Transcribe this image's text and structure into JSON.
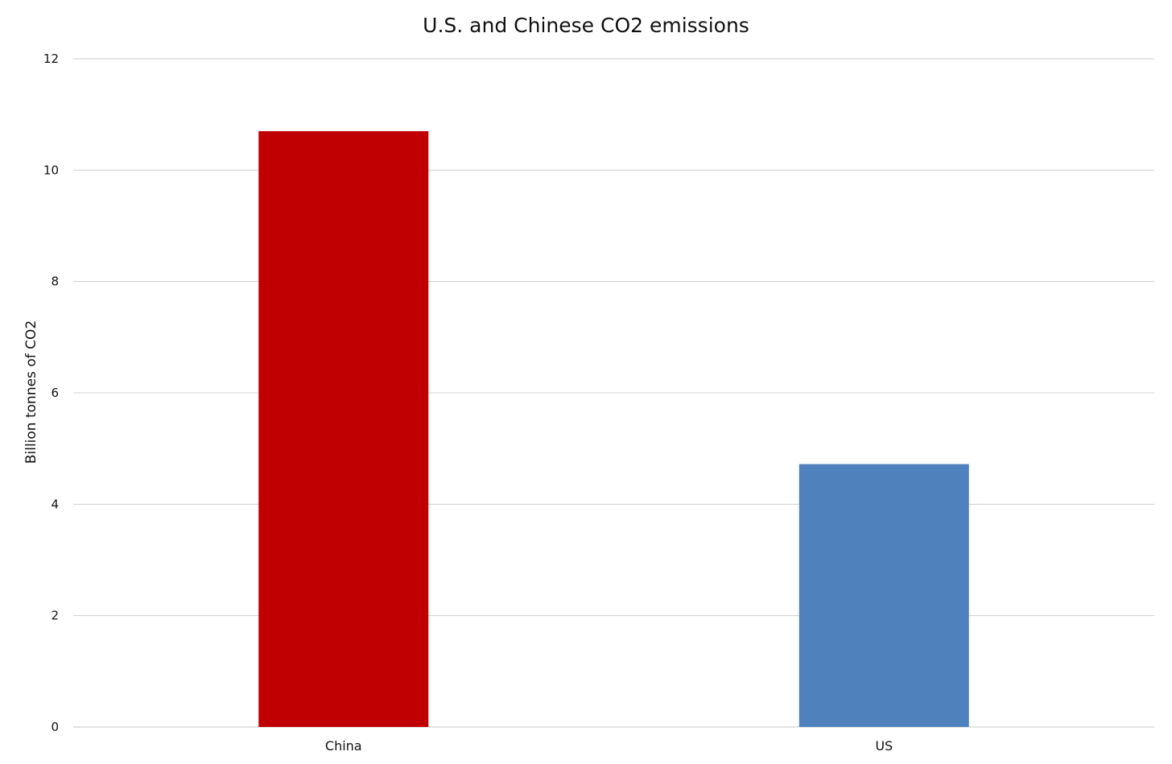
{
  "chart_data": {
    "type": "bar",
    "title": "U.S. and Chinese CO2 emissions",
    "xlabel": "",
    "ylabel": "Billion tonnes of CO2",
    "categories": [
      "China",
      "US"
    ],
    "values": [
      10.7,
      4.72
    ],
    "bar_colors": [
      "#C00000",
      "#4F81BD"
    ],
    "ylim": [
      0,
      12
    ],
    "yticks": [
      0,
      2,
      4,
      6,
      8,
      10,
      12
    ],
    "grid": true,
    "legend": "none"
  }
}
